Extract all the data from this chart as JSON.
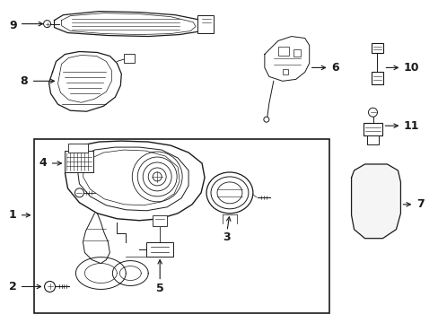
{
  "bg_color": "#ffffff",
  "line_color": "#1a1a1a",
  "fig_width": 4.89,
  "fig_height": 3.6,
  "dpi": 100,
  "font_size": 9,
  "lw": 0.7
}
